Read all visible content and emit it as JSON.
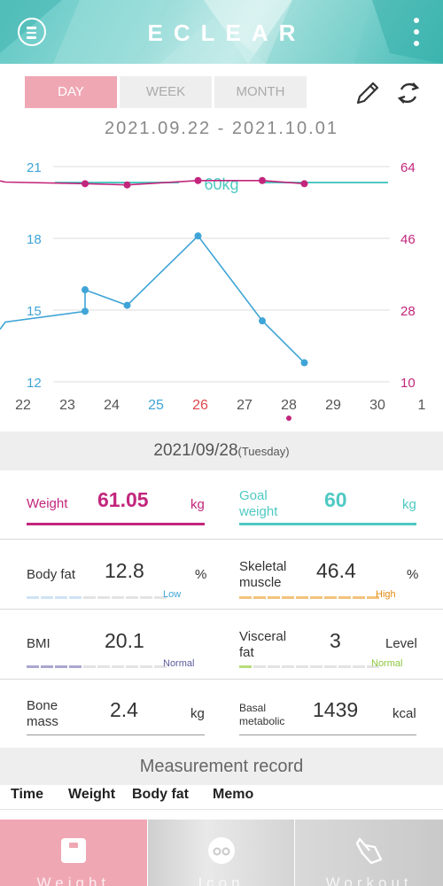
{
  "header": {
    "title": "ECLEAR",
    "menu_icon": "menu-icon",
    "more_icon": "more-vertical-icon"
  },
  "tabs": [
    {
      "label": "DAY",
      "active": true
    },
    {
      "label": "WEEK",
      "active": false
    },
    {
      "label": "MONTH",
      "active": false
    }
  ],
  "toolbar": {
    "edit_icon": "pencil-icon",
    "sync_icon": "sync-icon"
  },
  "date_range": "2021.09.22 - 2021.10.01",
  "chart_data": {
    "type": "line",
    "x_ticks": [
      "22",
      "23",
      "24",
      "25",
      "26",
      "27",
      "28",
      "29",
      "30",
      "1"
    ],
    "x_tick_colors": {
      "25": "#3fa4d6",
      "26": "#e0474c"
    },
    "selected_x": "28",
    "left_axis": {
      "ticks": [
        21,
        18,
        15,
        12
      ],
      "color": "#3fa4d6",
      "range": [
        12,
        21
      ]
    },
    "right_axis": {
      "ticks": [
        64,
        46,
        28,
        10
      ],
      "color": "#c2267c",
      "range": [
        10,
        64
      ]
    },
    "goal_label": "60kg",
    "goal_value": 60,
    "colors": {
      "body_fat": "#3fa4d6",
      "weight": "#c2267c",
      "goal": "#4fc9c3"
    },
    "series": [
      {
        "axis": "left",
        "points": [
          [
            21.6,
            14.5
          ],
          [
            23.4,
            14.95
          ],
          [
            23.4,
            15.85
          ],
          [
            24.35,
            15.2
          ],
          [
            25.95,
            18.1
          ],
          [
            27.4,
            14.55
          ],
          [
            28.35,
            12.8
          ]
        ]
      },
      {
        "axis": "right",
        "points": [
          [
            21.6,
            60.1
          ],
          [
            23.4,
            59.7
          ],
          [
            24.35,
            59.4
          ],
          [
            25.95,
            60.5
          ],
          [
            27.4,
            60.5
          ],
          [
            28.35,
            59.7
          ]
        ]
      }
    ]
  },
  "selected_date": {
    "date": "2021/09/28",
    "weekday": "(Tuesday)"
  },
  "metrics": {
    "weight": {
      "label": "Weight",
      "value": "61.05",
      "unit": "kg",
      "color": "#c2267c"
    },
    "goal_weight": {
      "label": "Goal weight",
      "value": "60",
      "unit": "kg",
      "color": "#4fc9c3"
    },
    "body_fat": {
      "label": "Body fat",
      "value": "12.8",
      "unit": "%",
      "status": "Low",
      "status_color": "#3fa4d6",
      "level_segments": 4,
      "bar_color": "#cfe3f4"
    },
    "skeletal_muscle": {
      "label": "Skeletal muscle",
      "value": "46.4",
      "unit": "%",
      "status": "High",
      "status_color": "#e58a0e",
      "level_segments": 10,
      "bar_color": "#f2c27b"
    },
    "bmi": {
      "label": "BMI",
      "value": "20.1",
      "unit": "",
      "status": "Normal",
      "status_color": "#5b5b9e",
      "level_segments": 4,
      "bar_color": "#a9a7cf"
    },
    "visceral_fat": {
      "label": "Visceral fat",
      "value": "3",
      "unit": "Level",
      "status": "Normal",
      "status_color": "#8cc63f",
      "level_segments": 1,
      "bar_color": "#b8dd7c"
    },
    "bone_mass": {
      "label": "Bone mass",
      "value": "2.4",
      "unit": "kg"
    },
    "basal_metabolic": {
      "label": "Basal metabolic",
      "value": "1439",
      "unit": "kcal"
    }
  },
  "measurement_record": {
    "title": "Measurement record",
    "columns": [
      "Time",
      "Weight",
      "Body fat",
      "Memo"
    ]
  },
  "bottom_nav": [
    {
      "label": "Weight",
      "icon": "scale-icon",
      "active": true
    },
    {
      "label": "Icon",
      "icon": "face-icon",
      "active": false
    },
    {
      "label": "Workout",
      "icon": "workout-icon",
      "active": false
    }
  ]
}
